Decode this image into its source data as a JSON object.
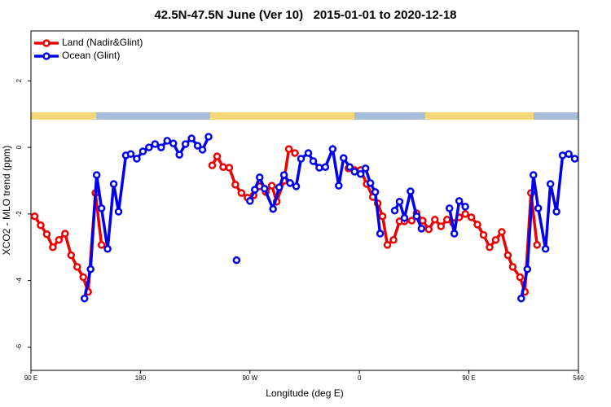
{
  "chart_data": {
    "type": "line",
    "title": "42.5N-47.5N June (Ver 10)   2015-01-01 to 2020-12-18",
    "x_label": "Longitude (deg E)",
    "y_label": "XCO2 - MLO trend (ppm)",
    "xlim": [
      90,
      540
    ],
    "ylim": [
      -6.7,
      3.5
    ],
    "xticks": [
      {
        "value": 90,
        "label": "90 E"
      },
      180,
      {
        "value": 270,
        "label": "90 W"
      },
      {
        "value": 360,
        "label": "0"
      },
      {
        "value": 450,
        "label": "90 E"
      },
      540
    ],
    "yticks": [
      -6,
      -4,
      -2,
      0,
      2
    ],
    "legend": "top-left",
    "series": [
      {
        "name": "Land (Nadir&Glint)",
        "color": "#ee0000",
        "x": [
          93,
          98,
          103,
          108,
          113,
          118,
          123,
          128,
          133,
          137,
          143,
          148,
          null,
          239,
          243,
          248,
          253,
          258,
          263,
          268,
          273,
          278,
          283,
          288,
          292,
          298,
          302,
          307,
          null,
          351,
          356,
          361,
          366,
          371,
          375,
          379,
          383,
          388,
          393,
          397,
          403,
          407,
          412,
          417,
          422,
          427,
          432,
          437,
          442,
          447,
          452,
          457,
          462,
          467,
          472,
          477,
          482,
          486,
          492,
          496,
          501,
          506
        ],
        "values": [
          -2.07,
          -2.34,
          -2.61,
          -3.0,
          -2.78,
          -2.59,
          -3.24,
          -3.59,
          -3.9,
          -4.34,
          -1.37,
          -2.93,
          null,
          -0.54,
          -0.27,
          -0.59,
          -0.61,
          -1.12,
          -1.37,
          -1.51,
          -1.44,
          -1.17,
          -1.34,
          -1.15,
          -1.63,
          -1.0,
          -0.05,
          -0.17,
          null,
          -0.63,
          -0.68,
          -0.68,
          -1.1,
          -1.49,
          -1.68,
          -2.07,
          -2.93,
          -2.78,
          -2.22,
          -2.22,
          -2.2,
          -1.98,
          -2.2,
          -2.46,
          -2.17,
          -2.37,
          -2.17,
          -2.27,
          -2.1,
          -2.0,
          -2.1,
          -2.32,
          -2.63,
          -3.0,
          -2.78,
          -2.54,
          -3.24,
          -3.59,
          -3.9,
          -4.34,
          -1.37,
          -2.93
        ]
      },
      {
        "name": "Ocean (Glint)",
        "color": "#0000ee",
        "x": [
          134,
          139,
          144,
          148,
          153,
          158,
          162,
          168,
          172,
          177,
          182,
          187,
          192,
          197,
          202,
          207,
          212,
          217,
          222,
          227,
          231,
          236,
          null,
          259,
          null,
          270,
          274,
          278,
          282,
          289,
          294,
          298,
          303,
          308,
          312,
          318,
          322,
          327,
          332,
          338,
          343,
          347,
          352,
          356,
          361,
          365,
          369,
          373,
          377,
          null,
          389,
          393,
          397,
          402,
          407,
          411,
          null,
          434,
          438,
          442,
          447,
          null,
          493,
          498,
          503,
          507,
          513,
          517,
          522,
          527,
          532,
          537
        ],
        "values": [
          -4.54,
          -3.66,
          -0.83,
          -1.83,
          -3.05,
          -1.1,
          -1.93,
          -0.24,
          -0.2,
          -0.34,
          -0.12,
          0,
          0.1,
          0,
          0.2,
          0.12,
          -0.22,
          0.1,
          0.27,
          0.05,
          -0.07,
          0.32,
          null,
          -3.39,
          null,
          -1.61,
          -1.27,
          -0.9,
          -1.24,
          -1.85,
          -1.2,
          -0.83,
          -1.07,
          -1.17,
          -0.34,
          -0.17,
          -0.41,
          -0.61,
          -0.59,
          -0.05,
          -1.15,
          -0.32,
          -0.59,
          -0.73,
          -0.8,
          -0.63,
          -1.07,
          -1.34,
          -2.59,
          null,
          -1.9,
          -1.63,
          -2.12,
          -1.32,
          -2.07,
          -2.44,
          null,
          -1.83,
          -2.59,
          -1.61,
          -1.78,
          null,
          -4.54,
          -3.66,
          -0.83,
          -1.83,
          -3.05,
          -1.1,
          -1.93,
          -0.24,
          -0.2,
          -0.34
        ]
      }
    ]
  }
}
